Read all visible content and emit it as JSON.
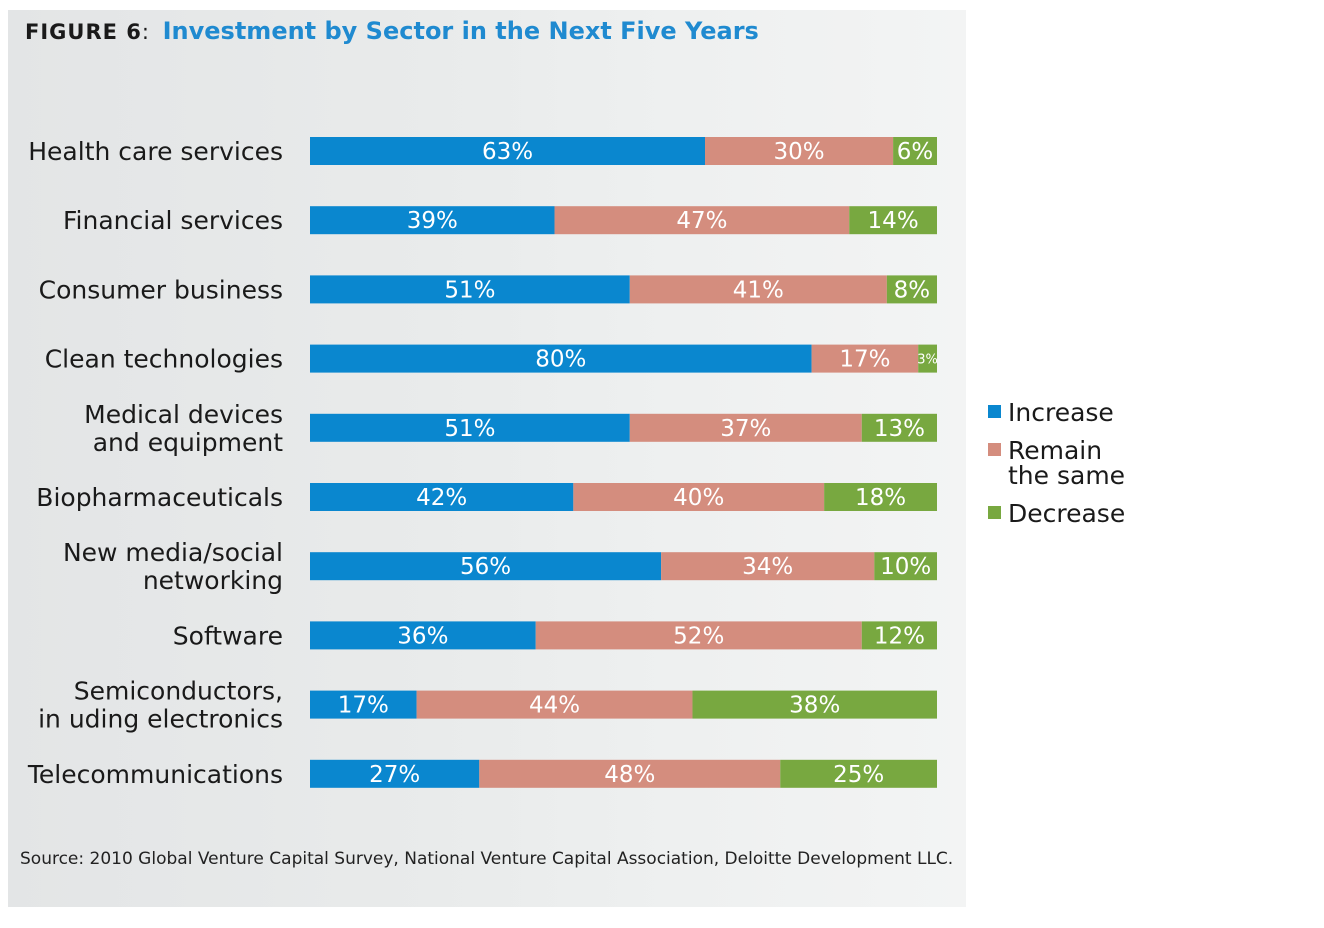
{
  "figure": {
    "label": "FIGURE 6",
    "separator": ":",
    "title": "Investment by Sector in the Next Five Years"
  },
  "source": "Source: 2010 Global Venture Capital Survey, National Venture Capital Association, Deloitte Development LLC.",
  "chart_data": {
    "type": "bar",
    "orientation": "horizontal",
    "stacked": true,
    "title": "Investment by Sector in the Next Five Years",
    "xlabel": "",
    "ylabel": "",
    "xlim": [
      0,
      100
    ],
    "grid": false,
    "legend_position": "right",
    "categories": [
      [
        "Health care services"
      ],
      [
        "Financial services"
      ],
      [
        "Consumer business"
      ],
      [
        "Clean technologies"
      ],
      [
        "Medical devices",
        "and equipment"
      ],
      [
        "Biopharmaceuticals"
      ],
      [
        "New media/social",
        "networking"
      ],
      [
        "Software"
      ],
      [
        "Semiconductors,",
        "in    uding electronics"
      ],
      [
        "Telecommunications"
      ]
    ],
    "series": [
      {
        "name": "Increase",
        "color": "#0a87cf",
        "values": [
          63,
          39,
          51,
          80,
          51,
          42,
          56,
          36,
          17,
          27
        ],
        "labels": [
          "63%",
          "39%",
          "51%",
          "80%",
          "51%",
          "42%",
          "56%",
          "36%",
          "17%",
          "27%"
        ]
      },
      {
        "name": "Remain the same",
        "legend_lines": [
          "Remain",
          "the same"
        ],
        "color": "#d48d7e",
        "values": [
          30,
          47,
          41,
          17,
          37,
          40,
          34,
          52,
          44,
          48
        ],
        "labels": [
          "30%",
          "47%",
          "41%",
          "17%",
          "37%",
          "40%",
          "34%",
          "52%",
          "44%",
          "48%"
        ]
      },
      {
        "name": "Decrease",
        "color": "#78a840",
        "values": [
          6,
          14,
          8,
          3,
          13,
          18,
          10,
          12,
          38,
          25
        ],
        "labels": [
          "6%",
          "14%",
          "8%",
          "3%",
          "13%",
          "18%",
          "10%",
          "12%",
          "38%",
          "25%"
        ]
      }
    ]
  }
}
